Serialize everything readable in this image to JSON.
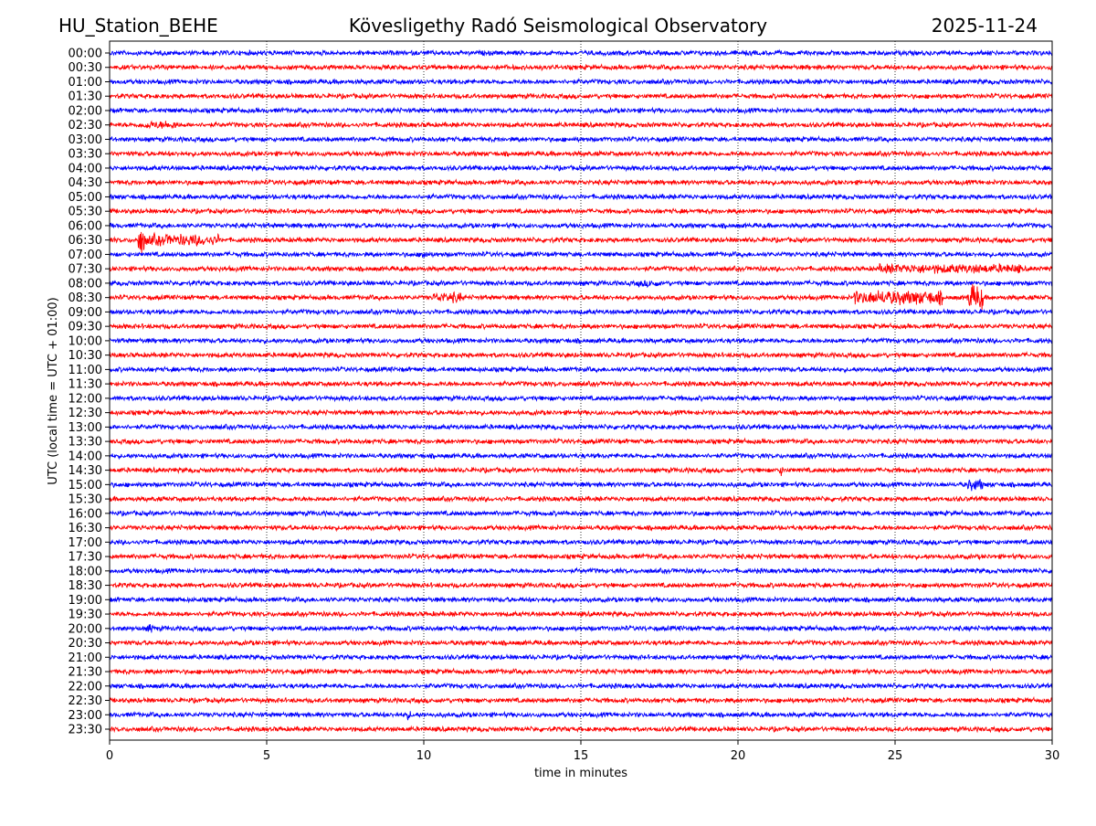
{
  "header": {
    "station": "HU_Station_BEHE",
    "observatory": "Kövesligethy Radó Seismological Observatory",
    "date": "2025-11-24"
  },
  "chart_data": {
    "type": "line",
    "title": "Kövesligethy Radó Seismological Observatory",
    "xlabel": "time in minutes",
    "ylabel": "UTC (local time = UTC + 01:00)",
    "xlim": [
      0,
      30
    ],
    "xticks": [
      "0",
      "5",
      "10",
      "15",
      "20",
      "25",
      "30"
    ],
    "grid": "vertical dotted at 5-minute intervals",
    "colors": {
      "even_rows": "#0000ff",
      "odd_rows": "#ff0000"
    },
    "rows": [
      "00:00",
      "00:30",
      "01:00",
      "01:30",
      "02:00",
      "02:30",
      "03:00",
      "03:30",
      "04:00",
      "04:30",
      "05:00",
      "05:30",
      "06:00",
      "06:30",
      "07:00",
      "07:30",
      "08:00",
      "08:30",
      "09:00",
      "09:30",
      "10:00",
      "10:30",
      "11:00",
      "11:30",
      "12:00",
      "12:30",
      "13:00",
      "13:30",
      "14:00",
      "14:30",
      "15:00",
      "15:30",
      "16:00",
      "16:30",
      "17:00",
      "17:30",
      "18:00",
      "18:30",
      "19:00",
      "19:30",
      "20:00",
      "20:30",
      "21:00",
      "21:30",
      "22:00",
      "22:30",
      "23:00",
      "23:30"
    ],
    "events": [
      {
        "row": "02:30",
        "start_min": 1.0,
        "end_min": 2.2,
        "amplitude": 1.8
      },
      {
        "row": "06:30",
        "start_min": 0.9,
        "end_min": 1.1,
        "amplitude": 6
      },
      {
        "row": "06:30",
        "start_min": 1.1,
        "end_min": 3.5,
        "amplitude": 2.5
      },
      {
        "row": "07:00",
        "start_min": 9.9,
        "end_min": 10.1,
        "amplitude": 2.5
      },
      {
        "row": "07:30",
        "start_min": 24.5,
        "end_min": 29.0,
        "amplitude": 2
      },
      {
        "row": "08:00",
        "start_min": 16.8,
        "end_min": 17.5,
        "amplitude": 1.6
      },
      {
        "row": "08:30",
        "start_min": 10.3,
        "end_min": 11.2,
        "amplitude": 2.2
      },
      {
        "row": "08:30",
        "start_min": 23.7,
        "end_min": 26.5,
        "amplitude": 3
      },
      {
        "row": "08:30",
        "start_min": 27.3,
        "end_min": 27.8,
        "amplitude": 5
      },
      {
        "row": "14:30",
        "start_min": 21.3,
        "end_min": 21.5,
        "amplitude": 2.2
      },
      {
        "row": "15:00",
        "start_min": 27.3,
        "end_min": 27.8,
        "amplitude": 2.5
      },
      {
        "row": "20:00",
        "start_min": 1.2,
        "end_min": 1.4,
        "amplitude": 2.2
      },
      {
        "row": "23:00",
        "start_min": 9.4,
        "end_min": 9.6,
        "amplitude": 2
      }
    ]
  }
}
